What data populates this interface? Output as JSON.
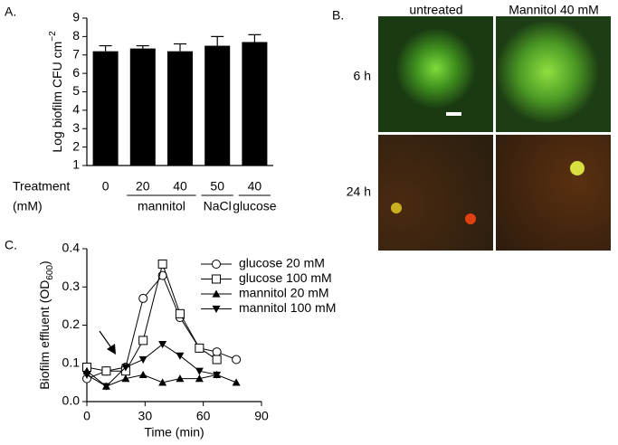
{
  "chart_data": [
    {
      "type": "bar",
      "panel": "A.",
      "ylabel": [
        "Log biofilm CFU cm",
        "−2"
      ],
      "x_title": "Treatment",
      "x_unit": "(mM)",
      "categories": [
        "0",
        "20",
        "40",
        "50",
        "40"
      ],
      "group_labels": [
        null,
        "mannitol",
        "mannitol",
        "NaCl",
        "glucose"
      ],
      "values": [
        7.2,
        7.35,
        7.2,
        7.5,
        7.7
      ],
      "errors": [
        0.3,
        0.15,
        0.4,
        0.5,
        0.4
      ],
      "color": "#000000",
      "ylim": [
        1,
        9
      ],
      "yticks": [
        1,
        2,
        3,
        4,
        5,
        6,
        7,
        8,
        9
      ]
    },
    {
      "type": "line",
      "panel": "C.",
      "ylabel": [
        "Biofilm effluent (OD",
        "600",
        ")"
      ],
      "xlabel": "Time (min)",
      "x": [
        0,
        10,
        20,
        29,
        39,
        48,
        58,
        67,
        77
      ],
      "series": [
        {
          "name": "glucose 20 mM",
          "color": "#000000",
          "marker": "circle",
          "values": [
            0.06,
            0.08,
            0.09,
            0.27,
            0.33,
            0.22,
            0.14,
            0.13,
            0.11
          ]
        },
        {
          "name": "glucose 100 mM",
          "color": "#000000",
          "marker": "square",
          "values": [
            0.09,
            0.08,
            0.08,
            0.16,
            0.36,
            0.23,
            0.14,
            0.11,
            null
          ]
        },
        {
          "name": "mannitol 20 mM",
          "color": "#000000",
          "marker": "triangle-up",
          "values": [
            0.08,
            0.04,
            0.06,
            0.07,
            0.05,
            0.06,
            0.06,
            0.07,
            0.05
          ]
        },
        {
          "name": "mannitol 100 mM",
          "color": "#000000",
          "marker": "triangle-down",
          "values": [
            0.07,
            0.04,
            0.09,
            0.11,
            0.15,
            0.12,
            0.08,
            0.07,
            null
          ]
        }
      ],
      "xlim": [
        0,
        90
      ],
      "xticks": [
        0,
        30,
        60,
        90
      ],
      "ylim": [
        0,
        0.4
      ],
      "yticks": [
        {
          "value": 0,
          "label": "0.0"
        },
        0.1,
        0.2,
        0.3,
        0.4
      ],
      "legend": "upper right"
    }
  ],
  "image_panel": {
    "panel": "B.",
    "columns": [
      "untreated",
      "Mannitol 40 mM"
    ],
    "rows": [
      "6 h",
      "24 h"
    ]
  }
}
